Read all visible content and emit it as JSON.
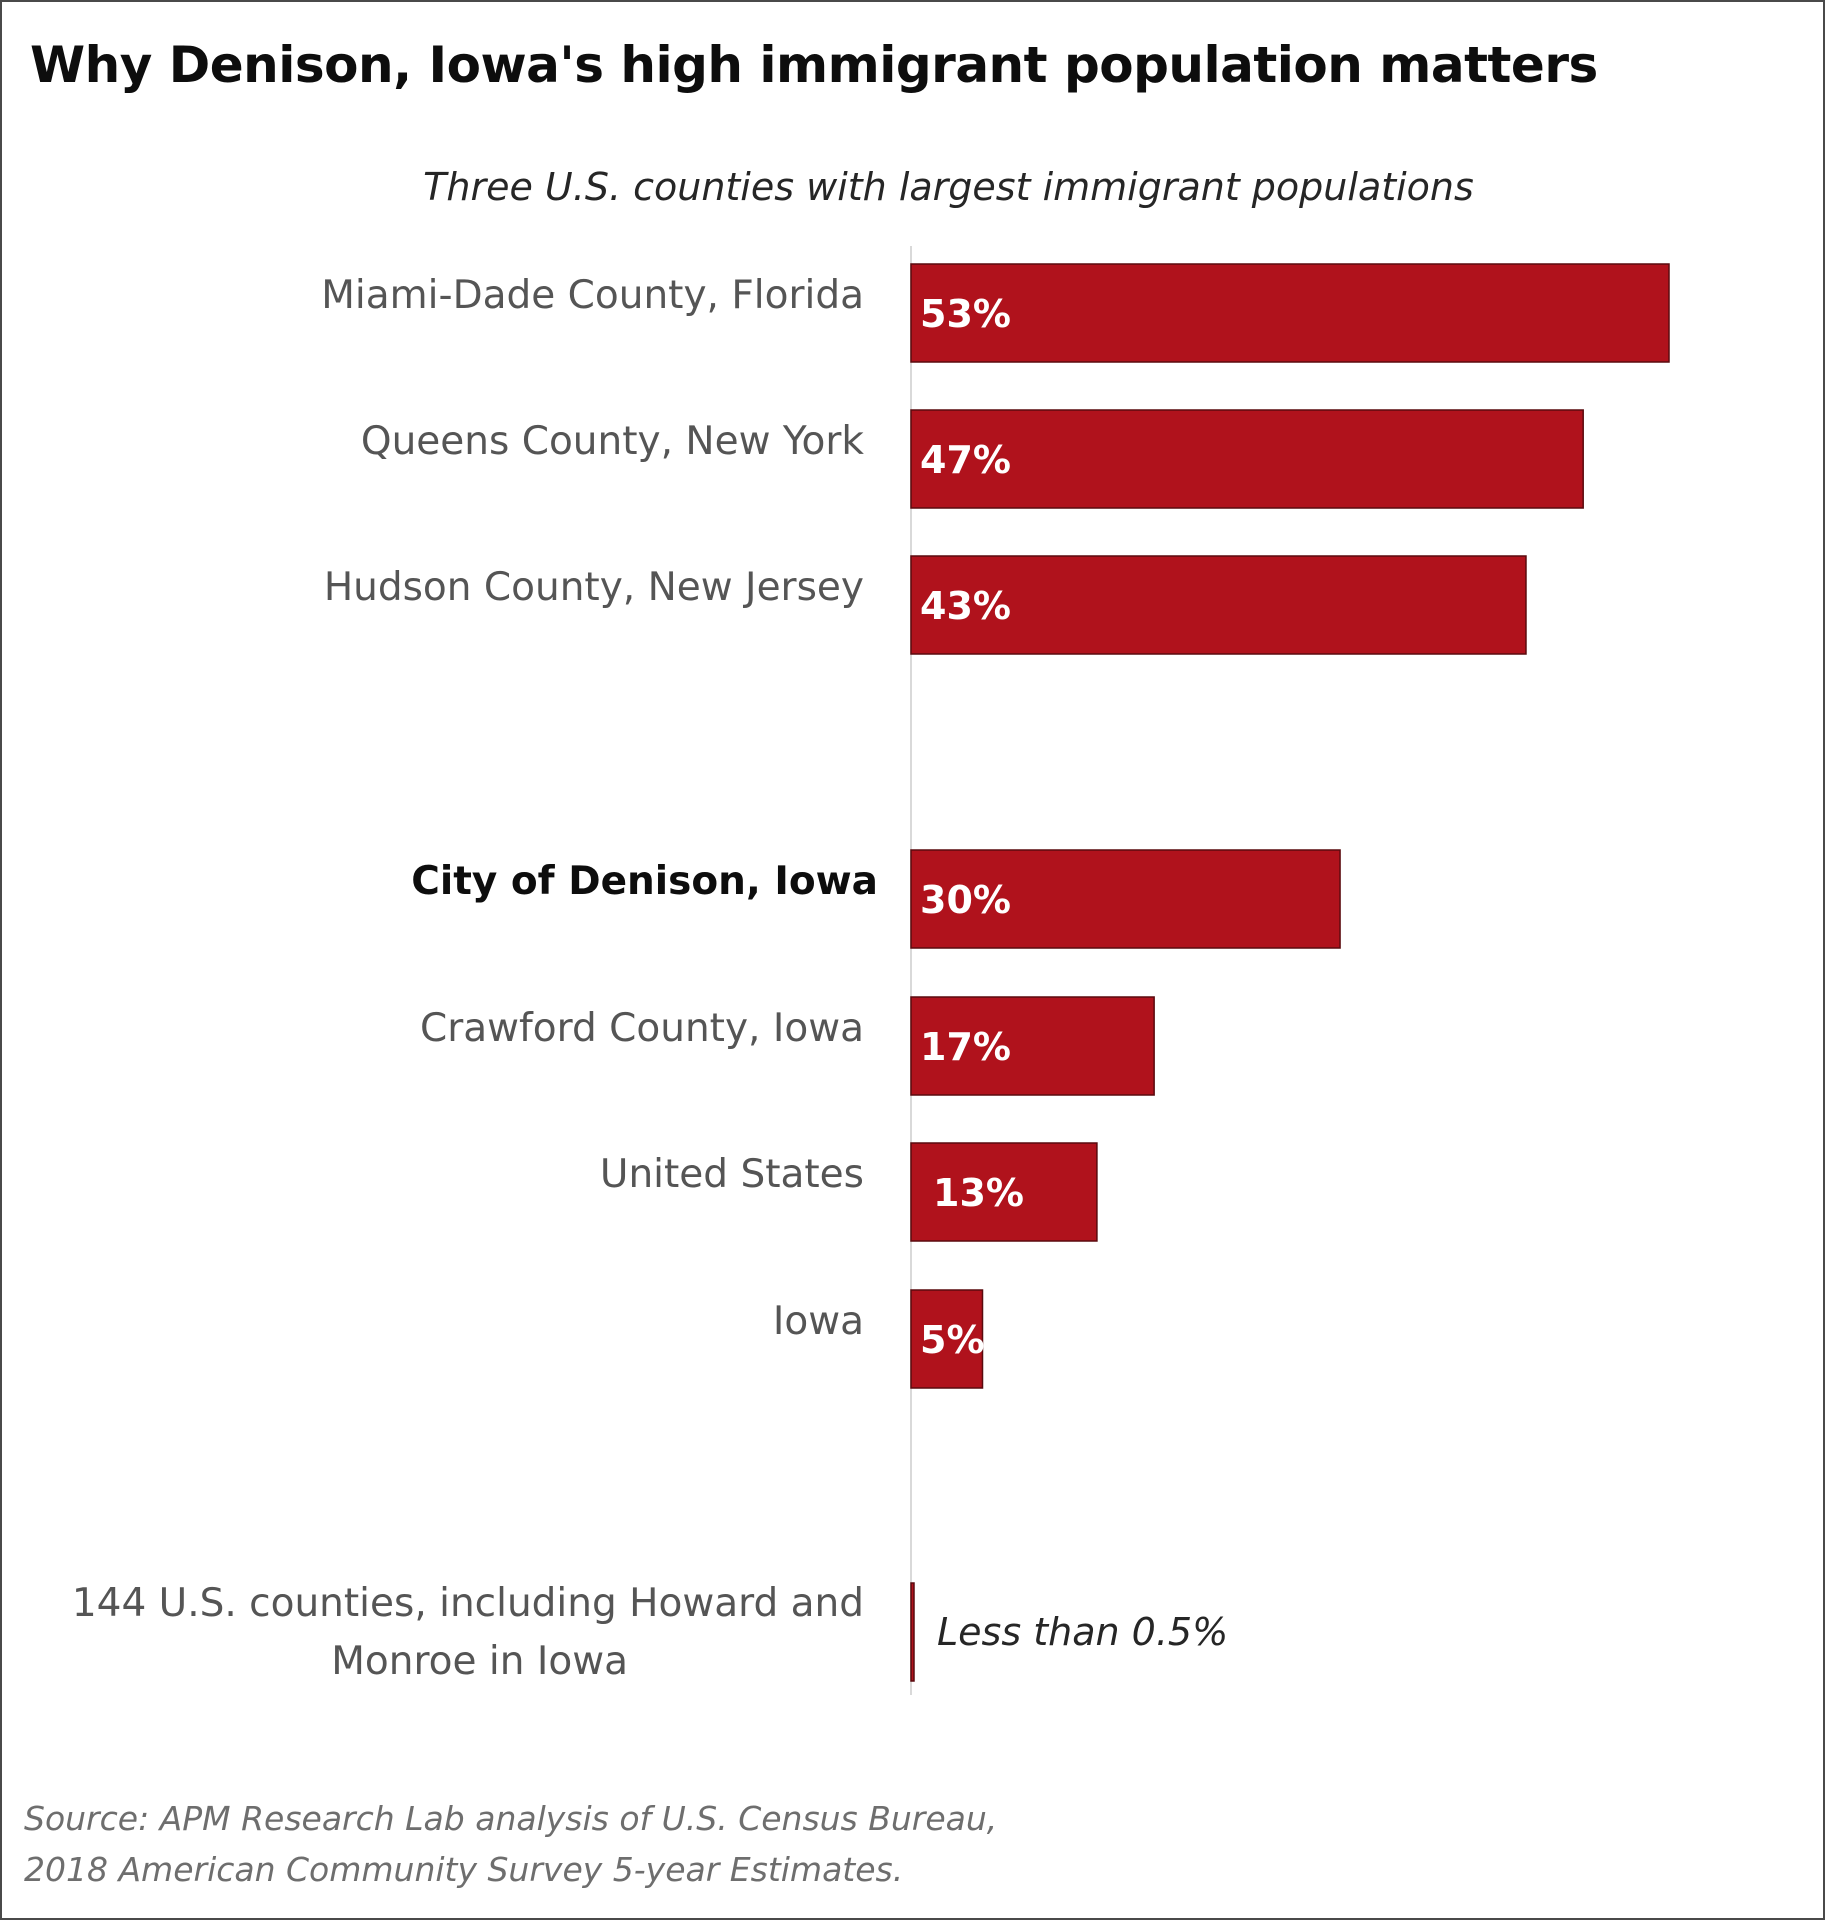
{
  "chart_data": {
    "type": "bar",
    "orientation": "horizontal",
    "title": "Why Denison, Iowa's high immigrant population matters",
    "subtitle": "Three U.S. counties with largest immigrant populations",
    "xlim": [
      0,
      53
    ],
    "bar_color": "#b0121c",
    "grid": false,
    "items": [
      {
        "label": "Miami-Dade County, Florida",
        "value": 53,
        "value_label": "53%"
      },
      {
        "label": "Queens County, New York",
        "value": 47,
        "value_label": "47%"
      },
      {
        "label": "Hudson County, New Jersey",
        "value": 43,
        "value_label": "43%"
      },
      {
        "label": "City of Denison, Iowa",
        "value": 30,
        "value_label": "30%",
        "bold": true
      },
      {
        "label": "Crawford County, Iowa",
        "value": 17,
        "value_label": "17%"
      },
      {
        "label": "United States",
        "value": 13,
        "value_label": "13%"
      },
      {
        "label": "Iowa",
        "value": 5,
        "value_label": "5%"
      },
      {
        "label": [
          "144 U.S. counties, including Howard and",
          "Monroe in Iowa"
        ],
        "value": 0.2,
        "value_label": "Less than 0.5%",
        "label_outside": true
      }
    ],
    "source_lines": [
      "Source: APM Research Lab analysis of U.S. Census Bureau,",
      "2018 American Community Survey 5-year Estimates."
    ]
  }
}
